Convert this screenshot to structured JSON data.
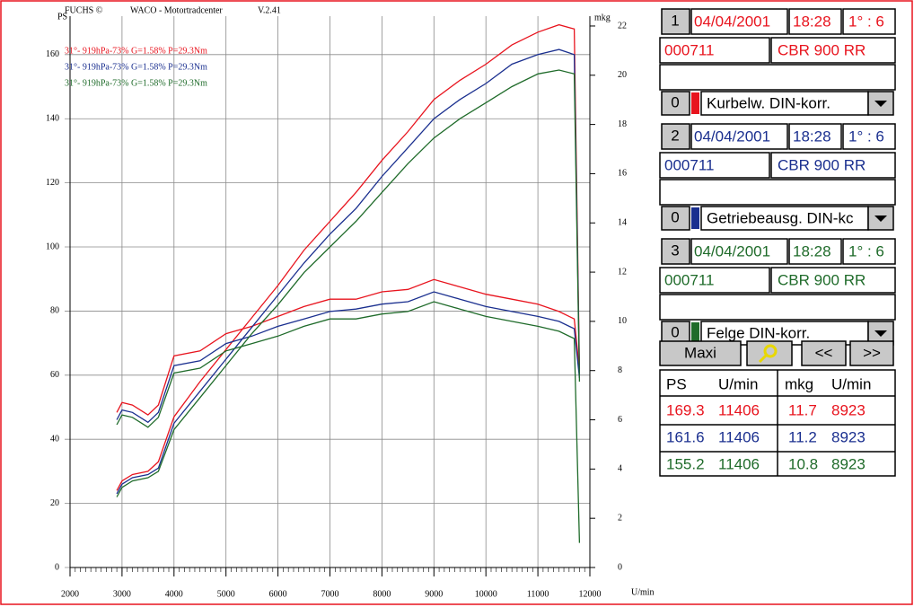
{
  "chart_data": {
    "type": "line",
    "header": [
      "FUCHS ©",
      "WACO - Motortradcenter",
      "V.2.41"
    ],
    "y_label": "PS",
    "y2_label": "mkg",
    "x_label": "U/min",
    "x": [
      2900,
      3000,
      3200,
      3500,
      3700,
      4000,
      4500,
      5000,
      5500,
      6000,
      6500,
      7000,
      7500,
      8000,
      8500,
      9000,
      9500,
      10000,
      10500,
      11000,
      11406,
      11700,
      11800
    ],
    "series": [
      {
        "name": "31°- 919hPa-73% G=1.58% P=29.3Nm",
        "color": "#e8141e",
        "values": [
          24,
          27,
          29,
          30,
          33,
          47,
          58,
          68,
          78,
          88,
          99,
          108,
          117,
          127,
          136,
          146,
          152,
          157,
          163,
          167,
          169.3,
          168,
          62
        ],
        "y2_values": [
          6.3,
          6.7,
          6.6,
          6.2,
          6.6,
          8.6,
          8.8,
          9.5,
          9.8,
          10.2,
          10.6,
          10.9,
          10.9,
          11.2,
          11.3,
          11.7,
          11.4,
          11.1,
          10.9,
          10.7,
          10.4,
          10.1,
          8.0
        ]
      },
      {
        "name": "31°- 919hPa-73% G=1.58% P=29.3Nm",
        "color": "#1a2f8f",
        "values": [
          23,
          26,
          28,
          29,
          31,
          45,
          55,
          65,
          75,
          85,
          95,
          104,
          112,
          122,
          131,
          140,
          146,
          151,
          157,
          160,
          161.6,
          160,
          60
        ],
        "y2_values": [
          6.0,
          6.4,
          6.3,
          5.9,
          6.3,
          8.2,
          8.4,
          9.1,
          9.4,
          9.8,
          10.1,
          10.4,
          10.5,
          10.7,
          10.8,
          11.2,
          10.9,
          10.6,
          10.4,
          10.2,
          10.0,
          9.7,
          7.7
        ]
      },
      {
        "name": "31°- 919hPa-73% G=1.58% P=29.3Nm",
        "color": "#1f6b2a",
        "values": [
          22,
          25,
          27,
          28,
          30,
          43,
          53,
          63,
          73,
          82,
          92,
          100,
          108,
          117,
          126,
          134,
          140,
          145,
          150,
          154,
          155.2,
          154,
          58
        ],
        "y2_values": [
          5.8,
          6.2,
          6.1,
          5.7,
          6.1,
          7.9,
          8.1,
          8.8,
          9.1,
          9.4,
          9.8,
          10.1,
          10.1,
          10.3,
          10.4,
          10.8,
          10.5,
          10.2,
          10.0,
          9.8,
          9.6,
          9.3,
          1.0
        ]
      }
    ],
    "xlim": [
      2000,
      12000
    ],
    "xticks": [
      2000,
      3000,
      4000,
      5000,
      6000,
      7000,
      8000,
      9000,
      10000,
      11000,
      12000
    ],
    "ylim": [
      0,
      172
    ],
    "yticks": [
      0,
      20,
      40,
      60,
      80,
      100,
      120,
      140,
      160
    ],
    "y2lim": [
      0,
      22.4
    ],
    "y2ticks": [
      0,
      2,
      4,
      6,
      8,
      10,
      12,
      14,
      16,
      18,
      20,
      22
    ],
    "grid": true
  },
  "panel": {
    "runs": [
      {
        "number": "1",
        "date": "04/04/2001",
        "time": "18:28",
        "ratio": "1° : 6",
        "id": "000711",
        "model": "CBR 900 RR",
        "selector": "0",
        "correction": "Kurbelw. DIN-korr.",
        "color": "#e8141e"
      },
      {
        "number": "2",
        "date": "04/04/2001",
        "time": "18:28",
        "ratio": "1° : 6",
        "id": "000711",
        "model": "CBR 900 RR",
        "selector": "0",
        "correction": "Getriebeausg. DIN-kc",
        "color": "#1a2f8f"
      },
      {
        "number": "3",
        "date": "04/04/2001",
        "time": "18:28",
        "ratio": "1° : 6",
        "id": "000711",
        "model": "CBR 900 RR",
        "selector": "0",
        "correction": "Felge DIN-korr.",
        "color": "#1f6b2a"
      }
    ],
    "buttons": [
      "Maxi",
      "<<",
      ">>"
    ],
    "table": {
      "header": [
        "PS",
        "U/min",
        "mkg",
        "U/min"
      ],
      "rows": [
        [
          "169.3",
          "11406",
          "11.7",
          "8923"
        ],
        [
          "161.6",
          "11406",
          "11.2",
          "8923"
        ],
        [
          "155.2",
          "11406",
          "10.8",
          "8923"
        ]
      ]
    }
  }
}
